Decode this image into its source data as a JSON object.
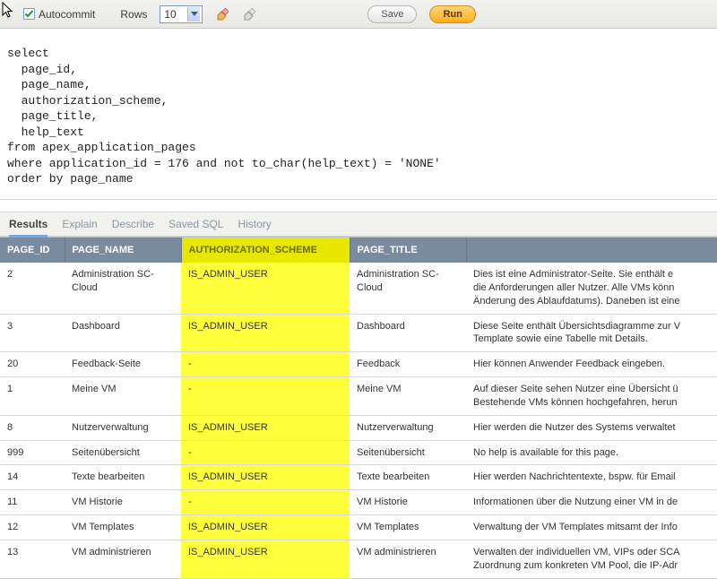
{
  "toolbar": {
    "autocommit_label": "Autocommit",
    "autocommit_checked": true,
    "rows_label": "Rows",
    "rows_value": "10",
    "save_label": "Save",
    "run_label": "Run"
  },
  "sql": "select\n  page_id,\n  page_name,\n  authorization_scheme,\n  page_title,\n  help_text\nfrom apex_application_pages\nwhere application_id = 176 and not to_char(help_text) = 'NONE'\norder by page_name",
  "tabs": {
    "items": [
      "Results",
      "Explain",
      "Describe",
      "Saved SQL",
      "History"
    ],
    "active_index": 0
  },
  "results": {
    "highlight_color": "#ffff3b",
    "header_highlight_color": "#e7e700",
    "columns": [
      {
        "key": "PAGE_ID",
        "label": "PAGE_ID",
        "highlight": false
      },
      {
        "key": "PAGE_NAME",
        "label": "PAGE_NAME",
        "highlight": false
      },
      {
        "key": "AUTHORIZATION_SCHEME",
        "label": "AUTHORIZATION_SCHEME",
        "highlight": true
      },
      {
        "key": "PAGE_TITLE",
        "label": "PAGE_TITLE",
        "highlight": false
      },
      {
        "key": "HELP_TEXT",
        "label": "",
        "highlight": false
      }
    ],
    "rows": [
      {
        "PAGE_ID": "2",
        "PAGE_NAME": "Administration SC-Cloud",
        "AUTHORIZATION_SCHEME": "IS_ADMIN_USER",
        "PAGE_TITLE": "Administration SC-Cloud",
        "HELP_TEXT": "Dies ist eine Administrator-Seite. Sie enthält e\ndie Anforderungen aller Nutzer. Alle VMs könn\nÄnderung des Ablaufdatums). Daneben ist eine"
      },
      {
        "PAGE_ID": "3",
        "PAGE_NAME": "Dashboard",
        "AUTHORIZATION_SCHEME": "IS_ADMIN_USER",
        "PAGE_TITLE": "Dashboard",
        "HELP_TEXT": "Diese Seite enthält Übersichtsdiagramme zur V\nTemplate sowie eine Tabelle mit Details."
      },
      {
        "PAGE_ID": "20",
        "PAGE_NAME": "Feedback-Seite",
        "AUTHORIZATION_SCHEME": "-",
        "PAGE_TITLE": "Feedback",
        "HELP_TEXT": "Hier können Anwender Feedback eingeben."
      },
      {
        "PAGE_ID": "1",
        "PAGE_NAME": "Meine VM",
        "AUTHORIZATION_SCHEME": "-",
        "PAGE_TITLE": "Meine VM",
        "HELP_TEXT": "Auf dieser Seite sehen Nutzer eine Übersicht ü\nBestehende VMs können hochgefahren, herun"
      },
      {
        "PAGE_ID": "8",
        "PAGE_NAME": "Nutzerverwaltung",
        "AUTHORIZATION_SCHEME": "IS_ADMIN_USER",
        "PAGE_TITLE": "Nutzerverwaltung",
        "HELP_TEXT": "Hier werden die Nutzer des Systems verwaltet"
      },
      {
        "PAGE_ID": "999",
        "PAGE_NAME": "Seitenübersicht",
        "AUTHORIZATION_SCHEME": "-",
        "PAGE_TITLE": "Seitenübersicht",
        "HELP_TEXT": "No help is available for this page."
      },
      {
        "PAGE_ID": "14",
        "PAGE_NAME": "Texte bearbeiten",
        "AUTHORIZATION_SCHEME": "IS_ADMIN_USER",
        "PAGE_TITLE": "Texte bearbeiten",
        "HELP_TEXT": "Hier werden Nachrichtentexte, bspw. für Email"
      },
      {
        "PAGE_ID": "11",
        "PAGE_NAME": "VM Historie",
        "AUTHORIZATION_SCHEME": "-",
        "PAGE_TITLE": "VM Historie",
        "HELP_TEXT": "Informationen über die Nutzung einer VM in de"
      },
      {
        "PAGE_ID": "12",
        "PAGE_NAME": "VM Templates",
        "AUTHORIZATION_SCHEME": "IS_ADMIN_USER",
        "PAGE_TITLE": "VM Templates",
        "HELP_TEXT": "Verwaltung der VM Templates mitsamt der Info"
      },
      {
        "PAGE_ID": "13",
        "PAGE_NAME": "VM administrieren",
        "AUTHORIZATION_SCHEME": "IS_ADMIN_USER",
        "PAGE_TITLE": "VM administrieren",
        "HELP_TEXT": "Verwalten der individuellen VM, VIPs oder SCA\nZuordnung zum konkreten VM Pool, die IP-Adr"
      }
    ]
  }
}
